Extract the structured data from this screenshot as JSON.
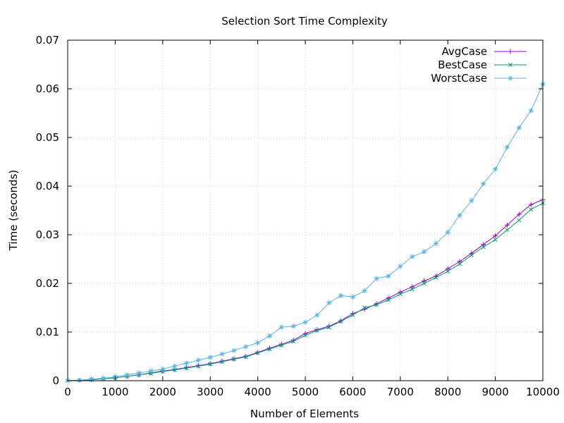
{
  "chart_data": {
    "type": "line",
    "title": "Selection Sort Time Complexity",
    "xlabel": "Number of Elements",
    "ylabel": "Time (seconds)",
    "xlim": [
      0,
      10000
    ],
    "ylim": [
      0,
      0.07
    ],
    "x_ticks": [
      0,
      1000,
      2000,
      3000,
      4000,
      5000,
      6000,
      7000,
      8000,
      9000,
      10000
    ],
    "y_ticks": [
      0,
      0.01,
      0.02,
      0.03,
      0.04,
      0.05,
      0.06,
      0.07
    ],
    "x_tick_labels": [
      "0",
      "1000",
      "2000",
      "3000",
      "4000",
      "5000",
      "6000",
      "7000",
      "8000",
      "9000",
      "10000"
    ],
    "y_tick_labels": [
      "0",
      "0.01",
      "0.02",
      "0.03",
      "0.04",
      "0.05",
      "0.06",
      "0.07"
    ],
    "grid": true,
    "legend_position": "top-right",
    "x": [
      0,
      250,
      500,
      750,
      1000,
      1250,
      1500,
      1750,
      2000,
      2250,
      2500,
      2750,
      3000,
      3250,
      3500,
      3750,
      4000,
      4250,
      4500,
      4750,
      5000,
      5250,
      5500,
      5750,
      6000,
      6250,
      6500,
      6750,
      7000,
      7250,
      7500,
      7750,
      8000,
      8250,
      8500,
      8750,
      9000,
      9250,
      9500,
      9750,
      10000
    ],
    "series": [
      {
        "name": "AvgCase",
        "color": "#9400d3",
        "marker": "plus",
        "values": [
          0.0,
          0.0001,
          0.0002,
          0.0004,
          0.0006,
          0.0009,
          0.0012,
          0.0016,
          0.002,
          0.0023,
          0.0027,
          0.0031,
          0.0035,
          0.004,
          0.0045,
          0.005,
          0.0058,
          0.0067,
          0.0075,
          0.0083,
          0.0097,
          0.0105,
          0.0112,
          0.0123,
          0.0138,
          0.0147,
          0.0158,
          0.017,
          0.0182,
          0.0193,
          0.0205,
          0.0215,
          0.023,
          0.0245,
          0.0262,
          0.028,
          0.0298,
          0.032,
          0.0342,
          0.0362,
          0.0372
        ]
      },
      {
        "name": "BestCase",
        "color": "#009e73",
        "marker": "cross",
        "values": [
          0.0,
          0.0001,
          0.0002,
          0.0004,
          0.0006,
          0.0009,
          0.0012,
          0.0015,
          0.0019,
          0.0022,
          0.0026,
          0.003,
          0.0034,
          0.0039,
          0.0044,
          0.0049,
          0.0057,
          0.0065,
          0.0073,
          0.0081,
          0.0093,
          0.0103,
          0.011,
          0.0122,
          0.0135,
          0.015,
          0.0156,
          0.0166,
          0.0178,
          0.0188,
          0.02,
          0.0212,
          0.0225,
          0.024,
          0.0258,
          0.0275,
          0.029,
          0.031,
          0.033,
          0.0352,
          0.0365
        ]
      },
      {
        "name": "WorstCase",
        "color": "#56b4e9",
        "marker": "star",
        "values": [
          0.0,
          0.0001,
          0.0003,
          0.0005,
          0.0008,
          0.0012,
          0.0016,
          0.002,
          0.0024,
          0.003,
          0.0036,
          0.0042,
          0.0048,
          0.0055,
          0.0062,
          0.007,
          0.0078,
          0.0092,
          0.011,
          0.0112,
          0.012,
          0.0135,
          0.016,
          0.0175,
          0.0172,
          0.0185,
          0.021,
          0.0215,
          0.0235,
          0.0255,
          0.0265,
          0.0282,
          0.0305,
          0.034,
          0.037,
          0.0405,
          0.0435,
          0.048,
          0.052,
          0.0555,
          0.061
        ]
      }
    ]
  }
}
